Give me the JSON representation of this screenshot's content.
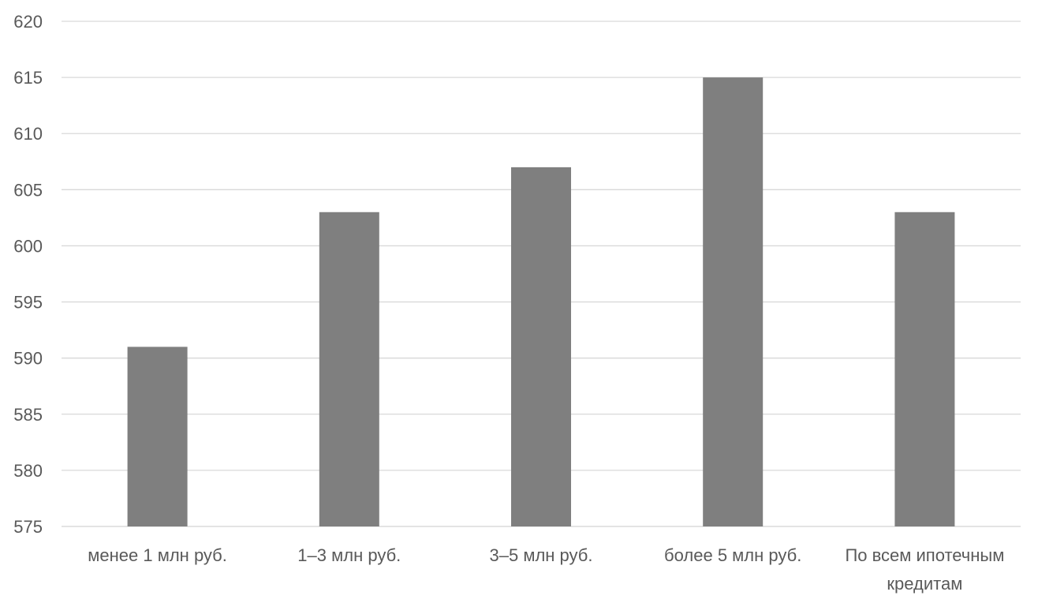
{
  "chart_data": {
    "type": "bar",
    "categories": [
      [
        "менее 1 млн руб."
      ],
      [
        "1–3 млн руб."
      ],
      [
        "3–5 млн руб."
      ],
      [
        "более 5 млн руб."
      ],
      [
        "По всем ипотечным",
        "кредитам"
      ]
    ],
    "values": [
      591,
      603,
      607,
      615,
      603
    ],
    "ylim": [
      575,
      620
    ],
    "yticks": [
      "575",
      "580",
      "585",
      "590",
      "595",
      "600",
      "605",
      "610",
      "615",
      "620"
    ],
    "grid": true,
    "bar_color": "#7f7f7f",
    "grid_color": "#d9d9d9",
    "text_color": "#595959"
  }
}
